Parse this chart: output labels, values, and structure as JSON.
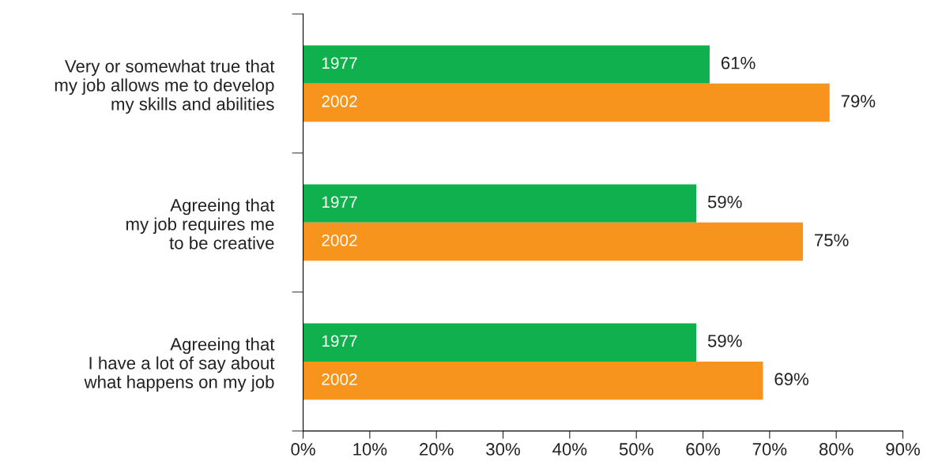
{
  "chart_data": {
    "type": "bar",
    "orientation": "horizontal",
    "categories": [
      "Very or somewhat true that\nmy job allows me to develop\nmy skills and abilities",
      "Agreeing that\nmy job requires me\nto be creative",
      "Agreeing that\nI have a lot of say about\nwhat happens on my job"
    ],
    "series": [
      {
        "name": "1977",
        "color": "#0fb14c",
        "values": [
          61,
          59,
          59
        ],
        "value_labels": [
          "61%",
          "59%",
          "59%"
        ]
      },
      {
        "name": "2002",
        "color": "#f7941d",
        "values": [
          79,
          75,
          69
        ],
        "value_labels": [
          "79%",
          "75%",
          "69%"
        ]
      }
    ],
    "xlim": [
      0,
      90
    ],
    "xticks": [
      {
        "value": 0,
        "label": "0%"
      },
      {
        "value": 10,
        "label": "10%"
      },
      {
        "value": 20,
        "label": "20%"
      },
      {
        "value": 30,
        "label": "30%"
      },
      {
        "value": 40,
        "label": "40%"
      },
      {
        "value": 50,
        "label": "50%"
      },
      {
        "value": 60,
        "label": "60%"
      },
      {
        "value": 70,
        "label": "70%"
      },
      {
        "value": 80,
        "label": "80%"
      },
      {
        "value": 90,
        "label": "90%"
      }
    ],
    "grid": false,
    "legend": false
  }
}
